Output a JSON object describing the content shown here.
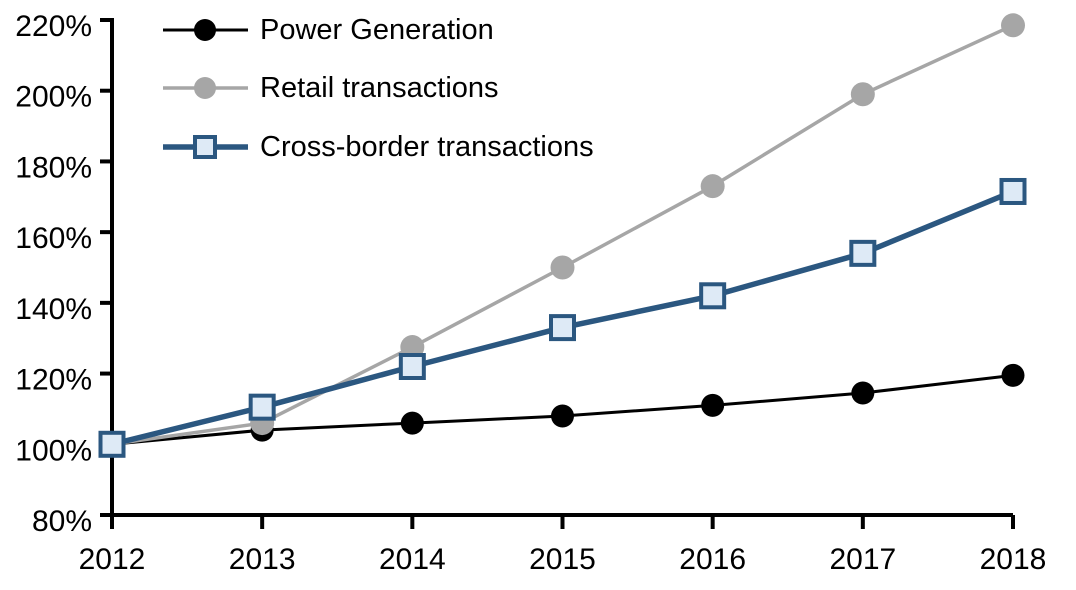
{
  "chart_data": {
    "type": "line",
    "title": "",
    "xlabel": "",
    "ylabel": "",
    "x": [
      "2012",
      "2013",
      "2014",
      "2015",
      "2016",
      "2017",
      "2018"
    ],
    "series": [
      {
        "name": "Power Generation",
        "values": [
          100,
          104,
          106,
          108,
          111,
          114.5,
          119.5
        ],
        "color": "#000000",
        "line_width": 3,
        "marker": "circle",
        "marker_fill": "#000000",
        "marker_radius": 11.5
      },
      {
        "name": "Retail transactions",
        "values": [
          100,
          106,
          127.5,
          150,
          173,
          199,
          218.5
        ],
        "color": "#a6a6a6",
        "line_width": 3.5,
        "marker": "circle",
        "marker_fill": "#a6a6a6",
        "marker_radius": 12
      },
      {
        "name": "Cross-border transactions",
        "values": [
          100,
          110.5,
          122,
          133,
          142,
          154,
          171.5
        ],
        "color": "#2b5780",
        "line_width": 5.5,
        "marker": "square",
        "marker_fill": "#deeaf6",
        "marker_stroke": "#2b5780",
        "marker_size": 23,
        "marker_stroke_width": 4
      }
    ],
    "ylim": [
      80,
      220
    ],
    "ytick_step": 20,
    "y_tick_labels": [
      "80%",
      "100%",
      "120%",
      "140%",
      "160%",
      "180%",
      "200%",
      "220%"
    ],
    "x_tick_labels": [
      "2012",
      "2013",
      "2014",
      "2015",
      "2016",
      "2017",
      "2018"
    ],
    "grid": false,
    "legend_position": "top-left",
    "axis_color": "#000000"
  }
}
